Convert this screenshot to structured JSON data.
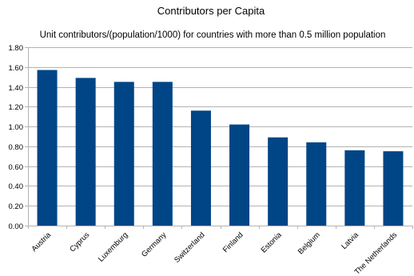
{
  "chart_data": {
    "type": "bar",
    "title": "Contributors per Capita",
    "subtitle": "Unit contributors/(population/1000) for countries with more than 0.5 million population",
    "categories": [
      "Austria",
      "Cyprus",
      "Luxemburg",
      "Germany",
      "Switzerland",
      "Finland",
      "Estonia",
      "Belgium",
      "Latvia",
      "The Netherlands"
    ],
    "values": [
      1.57,
      1.49,
      1.45,
      1.45,
      1.16,
      1.02,
      0.89,
      0.84,
      0.76,
      0.75
    ],
    "ylim": [
      0,
      1.8
    ],
    "yticks": [
      "0.00",
      "0.20",
      "0.40",
      "0.60",
      "0.80",
      "1.00",
      "1.20",
      "1.40",
      "1.60",
      "1.80"
    ],
    "xlabel": "",
    "ylabel": "",
    "grid": true,
    "legend": "none",
    "bar_color": "#004586"
  }
}
